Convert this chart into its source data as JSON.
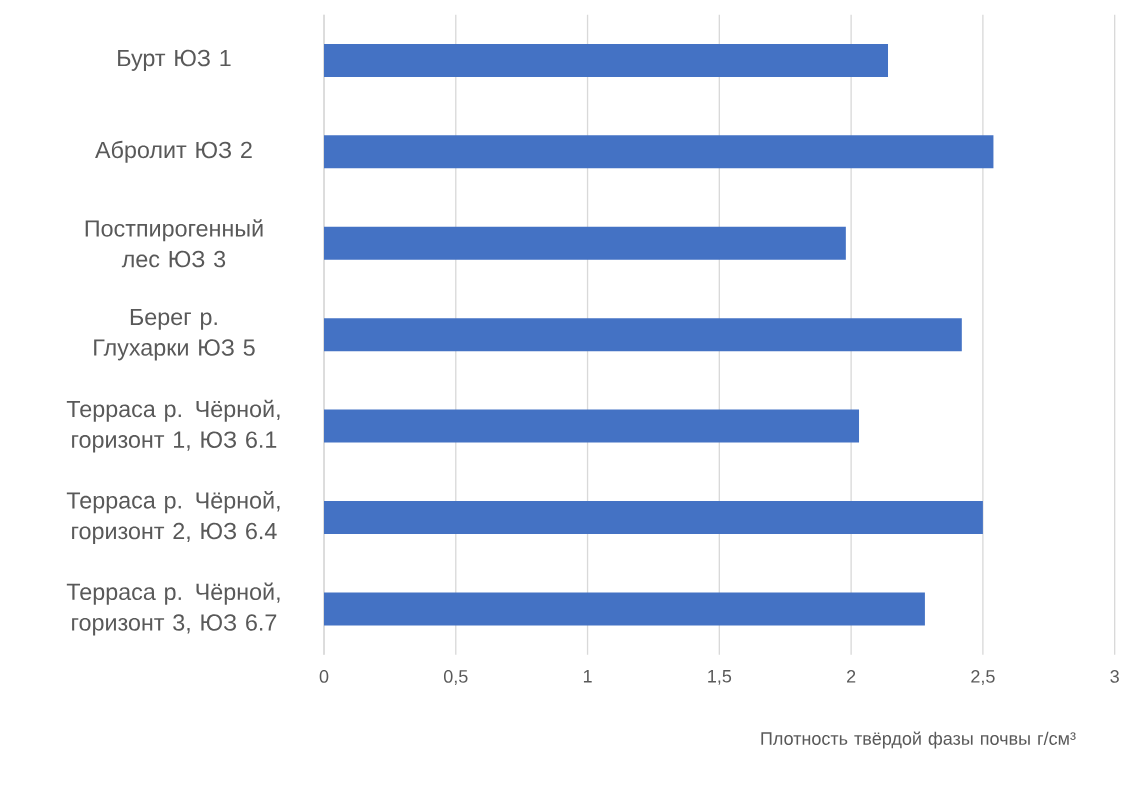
{
  "chart_data": {
    "type": "bar",
    "orientation": "horizontal",
    "categories": [
      "Бурт ЮЗ 1",
      "Абролит ЮЗ 2",
      "Постпирогенный лес ЮЗ 3",
      "Берег р. Глухарки ЮЗ 5",
      "Терраса р. Чёрной, горизонт 1, ЮЗ 6.1",
      "Терраса р. Чёрной, горизонт 2, ЮЗ 6.4",
      "Терраса р. Чёрной, горизонт 3, ЮЗ 6.7"
    ],
    "values": [
      2.14,
      2.54,
      1.98,
      2.42,
      2.03,
      2.5,
      2.28
    ],
    "color": "#4472c4",
    "xlabel": "Плотность твёрдой фазы почвы г/см³",
    "xlim": [
      0,
      3
    ],
    "xticks": [
      0,
      {
        "value": 0.5,
        "label": "0,5"
      },
      1,
      {
        "value": 1.5,
        "label": "1,5"
      },
      2,
      {
        "value": 2.5,
        "label": "2,5"
      },
      3
    ],
    "grid": "x"
  }
}
